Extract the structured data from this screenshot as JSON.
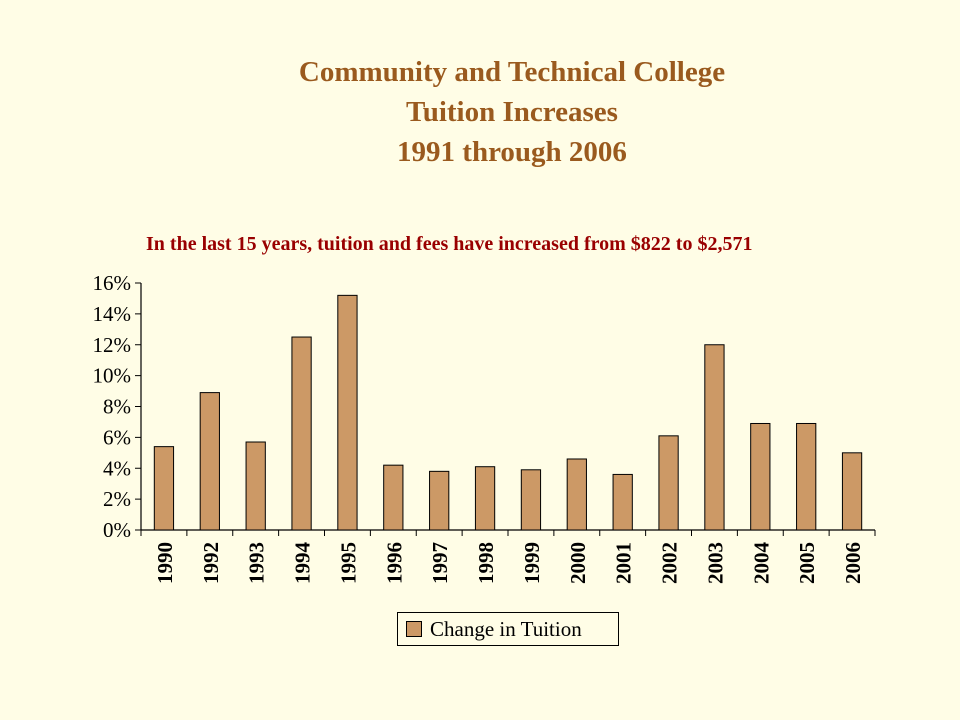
{
  "title": {
    "line1": "Community and Technical College",
    "line2": "Tuition Increases",
    "line3": "1991 through 2006"
  },
  "subtitle": "In the last 15 years, tuition and fees have increased from $822 to $2,571",
  "colors": {
    "bar": "#cc9966",
    "title": "#9a5a1e",
    "subtitle": "#990000",
    "background": "#fffde6"
  },
  "chart_data": {
    "type": "bar",
    "categories": [
      "1990",
      "1992",
      "1993",
      "1994",
      "1995",
      "1996",
      "1997",
      "1998",
      "1999",
      "2000",
      "2001",
      "2002",
      "2003",
      "2004",
      "2005",
      "2006"
    ],
    "series": [
      {
        "name": "Change in Tuition",
        "values": [
          5.4,
          8.9,
          5.7,
          12.5,
          15.2,
          4.2,
          3.8,
          4.1,
          3.9,
          4.6,
          3.6,
          6.1,
          12.0,
          6.9,
          6.9,
          5.0
        ]
      }
    ],
    "ylim": [
      0,
      16
    ],
    "yticks": [
      "0%",
      "2%",
      "4%",
      "6%",
      "8%",
      "10%",
      "12%",
      "14%",
      "16%"
    ],
    "grid": false,
    "legend": "bottom"
  }
}
